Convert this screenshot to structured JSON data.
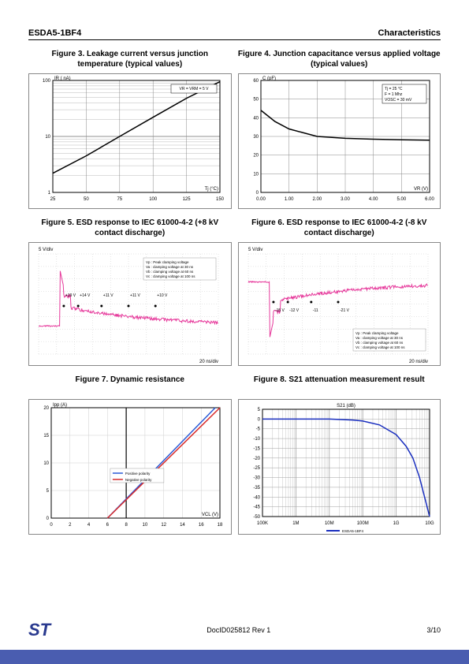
{
  "header": {
    "left": "ESDA5-1BF4",
    "right": "Characteristics"
  },
  "footer": {
    "doc": "DocID025812 Rev 1",
    "page": "3/10",
    "logo": "ST"
  },
  "fig3": {
    "title": "Figure 3. Leakage current versus junction temperature (typical values)",
    "type": "line-logy",
    "ylabel": "IR ( nA)",
    "xlabel": "Tj (°C)",
    "xlim": [
      25,
      150
    ],
    "xticks": [
      25,
      50,
      75,
      100,
      125,
      150
    ],
    "ylim": [
      1,
      100
    ],
    "yticks": [
      1,
      10,
      100
    ],
    "note": "VR = VRM = 5 V",
    "curve_color": "#000000",
    "grid_color": "#888888",
    "bg": "#ffffff",
    "curve": [
      [
        25,
        2.2
      ],
      [
        50,
        4.5
      ],
      [
        75,
        10
      ],
      [
        100,
        22
      ],
      [
        125,
        48
      ],
      [
        150,
        95
      ]
    ]
  },
  "fig4": {
    "title": "Figure 4. Junction capacitance versus applied voltage (typical values)",
    "type": "line",
    "ylabel": "C (pF)",
    "xlabel": "VR (V)",
    "xlim": [
      0,
      6
    ],
    "xticks": [
      "0.00",
      "1.00",
      "2.00",
      "3.00",
      "4.00",
      "5.00",
      "6.00"
    ],
    "ylim": [
      0,
      60
    ],
    "yticks": [
      0,
      10,
      20,
      30,
      40,
      50,
      60
    ],
    "notes": [
      "Tj = 25 °C",
      "F = 1 Mhz",
      "VOSC = 30 mV"
    ],
    "curve_color": "#000000",
    "grid_color": "#888888",
    "curve": [
      [
        0,
        44
      ],
      [
        0.5,
        38
      ],
      [
        1,
        34
      ],
      [
        1.5,
        32
      ],
      [
        2,
        30
      ],
      [
        3,
        29
      ],
      [
        4,
        28.5
      ],
      [
        5,
        28.2
      ],
      [
        6,
        28
      ]
    ]
  },
  "fig5": {
    "title": "Figure 5. ESD response to IEC 61000-4-2 (+8 kV contact discharge)",
    "type": "scope",
    "ydiv": "5 V/div",
    "xdiv": "20 ns/div",
    "trace_color": "#e6399b",
    "grid_color": "#c0c0c0",
    "marker_color": "#000",
    "legend": [
      "Vp : Peak clamping voltage",
      "Va : clamping voltage at 30 ns",
      "Vb : clamping voltage at 60 ns",
      "Vc : clamping voltage at 100 ns"
    ],
    "markers": [
      {
        "l": "+19 V"
      },
      {
        "l": "+14 V"
      },
      {
        "l": "+11 V"
      },
      {
        "l": "+11 V"
      },
      {
        "l": "+10 V"
      }
    ]
  },
  "fig6": {
    "title": "Figure 6. ESD response to IEC 61000-4-2 (-8 kV contact discharge)",
    "type": "scope",
    "ydiv": "5 V/div",
    "xdiv": "20 ns/div",
    "trace_color": "#e6399b",
    "grid_color": "#c0c0c0",
    "legend": [
      "Vp : Peak clamping voltage",
      "Va : clamping voltage at 30 ns",
      "Vb : clamping voltage at 60 ns",
      "Vc : clamping voltage at 100 ns"
    ],
    "markers": [
      {
        "l": "-15 V"
      },
      {
        "l": "-12 V"
      },
      {
        "l": "-11"
      },
      {
        "l": "-21 V"
      }
    ]
  },
  "fig7": {
    "title": "Figure 7. Dynamic resistance",
    "type": "line",
    "ylabel": "Ipp (A)",
    "xlabel": "VCL (V)",
    "xlim": [
      0,
      18
    ],
    "xticks": [
      0,
      2,
      4,
      6,
      8,
      10,
      12,
      14,
      16,
      18
    ],
    "ylim": [
      0,
      20
    ],
    "yticks": [
      0,
      5,
      10,
      15,
      20
    ],
    "grid_color": "#cfcfcf",
    "series": [
      {
        "name": "Positive polarity",
        "color": "#2a5bd7",
        "points": [
          [
            6,
            0
          ],
          [
            17.5,
            20
          ]
        ]
      },
      {
        "name": "Negative polarity",
        "color": "#d72a2a",
        "points": [
          [
            6,
            0
          ],
          [
            18,
            20
          ]
        ]
      }
    ]
  },
  "fig8": {
    "title": "Figure 8. S21 attenuation measurement result",
    "type": "line-logx",
    "ylabel": "S21 (dB)",
    "xlabel_ticks": [
      "100K",
      "1M",
      "10M",
      "100M",
      "1G",
      "10G"
    ],
    "ylim": [
      -50,
      5
    ],
    "yticks": [
      5,
      0,
      -5,
      -10,
      -15,
      -20,
      -25,
      -30,
      -35,
      -40,
      -45,
      -50
    ],
    "grid_color": "#a0a0a0",
    "curve_color": "#1a2fbf",
    "bg": "#ffffff",
    "legend_label": "ESDA5-1BF4",
    "curve": [
      [
        5,
        0
      ],
      [
        6,
        0
      ],
      [
        7,
        0
      ],
      [
        7.7,
        -0.5
      ],
      [
        8,
        -1
      ],
      [
        8.5,
        -3
      ],
      [
        9,
        -8
      ],
      [
        9.3,
        -14
      ],
      [
        9.5,
        -20
      ],
      [
        9.7,
        -30
      ],
      [
        9.85,
        -40
      ],
      [
        10,
        -50
      ]
    ]
  }
}
